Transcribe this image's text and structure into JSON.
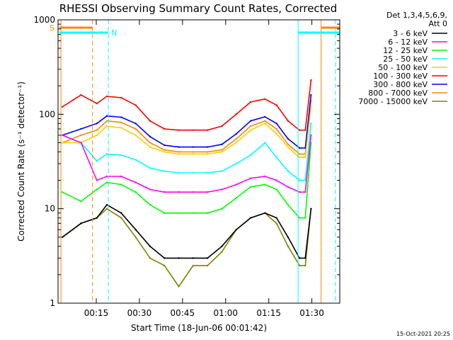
{
  "chart_data": {
    "type": "line",
    "title": "RHESSI Observing Summary Count Rates, Corrected",
    "xlabel": "Start Time (18-Jun-06 00:01:42)",
    "ylabel": "Corrected Count Rate (s⁻¹ detector⁻¹)",
    "y_scale": "log",
    "ylim": [
      1,
      1000
    ],
    "xlim_minutes": [
      0,
      98
    ],
    "y_ticks": [
      {
        "value": 1,
        "label": "1"
      },
      {
        "value": 10,
        "label": "10"
      },
      {
        "value": 100,
        "label": "100"
      },
      {
        "value": 1000,
        "label": "1000"
      }
    ],
    "x_ticks": [
      {
        "minute": 13.3,
        "label": "00:15"
      },
      {
        "minute": 28.3,
        "label": "00:30"
      },
      {
        "minute": 43.3,
        "label": "00:45"
      },
      {
        "minute": 58.3,
        "label": "01:00"
      },
      {
        "minute": 73.3,
        "label": "01:15"
      },
      {
        "minute": 88.3,
        "label": "01:30"
      }
    ],
    "legend_header": [
      "Det 1,3,4,5,6,9,",
      "Att 0"
    ],
    "legend_position": "right",
    "x": [
      1.5,
      8,
      13.5,
      17,
      22,
      27,
      32,
      37,
      42,
      47,
      52,
      57,
      62,
      67,
      72,
      76,
      80,
      84,
      86,
      88
    ],
    "series": [
      {
        "name": "3 - 6 keV",
        "color": "#000000",
        "values": [
          5,
          7,
          8,
          11,
          9,
          6,
          4,
          3,
          3,
          3,
          3,
          4,
          6,
          8,
          9,
          8,
          5,
          3,
          3,
          10
        ]
      },
      {
        "name": "6 - 12 keV",
        "color": "#ff00ff",
        "values": [
          60,
          50,
          20,
          22,
          22,
          19,
          16,
          15,
          15,
          15,
          15,
          16,
          18,
          21,
          22,
          20,
          17,
          15,
          15,
          60
        ]
      },
      {
        "name": "12 - 25 keV",
        "color": "#00ff00",
        "values": [
          15,
          12,
          16,
          19,
          18,
          15,
          11,
          9,
          9,
          9,
          9,
          10,
          13,
          17,
          18,
          16,
          11,
          8,
          8,
          50
        ]
      },
      {
        "name": "25 - 50 keV",
        "color": "#00ffff",
        "values": [
          60,
          50,
          32,
          38,
          37,
          33,
          27,
          25,
          24,
          24,
          24,
          25,
          30,
          37,
          50,
          35,
          25,
          20,
          20,
          80
        ]
      },
      {
        "name": "50 - 100 keV",
        "color": "#ffcc00",
        "values": [
          50,
          50,
          60,
          75,
          72,
          60,
          45,
          40,
          38,
          38,
          38,
          40,
          50,
          68,
          80,
          62,
          45,
          35,
          35,
          120
        ]
      },
      {
        "name": "100 - 300 keV",
        "color": "#ff0000",
        "values": [
          120,
          160,
          130,
          155,
          150,
          125,
          85,
          70,
          68,
          68,
          68,
          75,
          100,
          135,
          145,
          125,
          85,
          68,
          68,
          230
        ]
      },
      {
        "name": "300 - 800 keV",
        "color": "#0000ff",
        "values": [
          60,
          70,
          80,
          96,
          93,
          80,
          58,
          47,
          45,
          45,
          45,
          48,
          62,
          85,
          94,
          80,
          55,
          44,
          44,
          160
        ]
      },
      {
        "name": "800 - 7000 keV",
        "color": "#ff8800",
        "values": [
          50,
          60,
          68,
          85,
          82,
          70,
          50,
          42,
          40,
          40,
          40,
          42,
          55,
          75,
          85,
          70,
          48,
          38,
          38,
          140
        ]
      },
      {
        "name": "7000 - 15000 keV",
        "color": "#808000",
        "values": [
          5,
          7,
          8,
          10,
          8,
          5,
          3,
          2.5,
          1.5,
          2.5,
          2.5,
          3.5,
          6,
          8,
          9,
          7,
          4,
          2.5,
          2.5,
          10
        ]
      }
    ],
    "vlines": [
      {
        "minute": 1.0,
        "color": "#ff8800",
        "style": "solid"
      },
      {
        "minute": 12.0,
        "color": "#ff8800",
        "style": "dashed"
      },
      {
        "minute": 17.5,
        "color": "#00ffff",
        "style": "dashed"
      },
      {
        "minute": 83.5,
        "color": "#00ffff",
        "style": "solid"
      },
      {
        "minute": 91.5,
        "color": "#ff8800",
        "style": "solid"
      },
      {
        "minute": 96.5,
        "color": "#00ffff",
        "style": "dashed"
      }
    ],
    "flag_bars": [
      {
        "label": "S",
        "color": "#ff8800",
        "row": 1,
        "segments": [
          [
            0.5,
            12.0
          ],
          [
            91.5,
            98
          ]
        ]
      },
      {
        "label": "N",
        "color": "#00ffff",
        "row": 2,
        "segments": [
          [
            0.5,
            17.5
          ],
          [
            83.5,
            98
          ]
        ]
      }
    ],
    "timestamp": "15-Oct-2021 20:25"
  }
}
